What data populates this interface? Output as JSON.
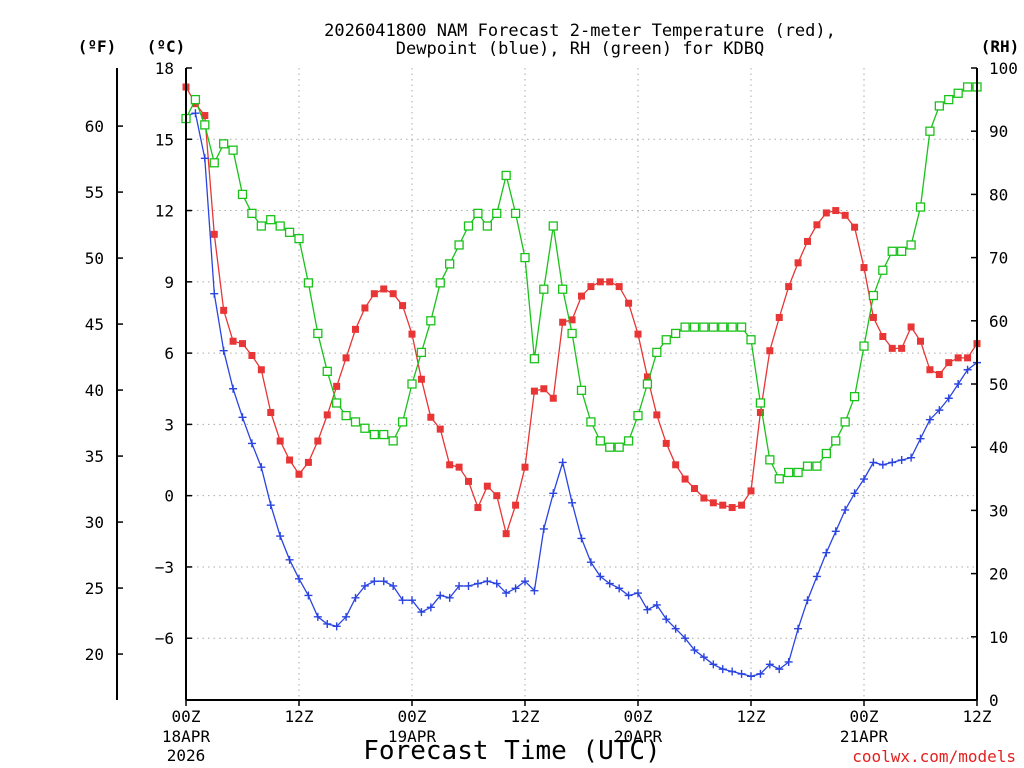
{
  "chart_data": {
    "type": "line",
    "title_lines": [
      "2026041800 NAM Forecast 2-meter Temperature (red),",
      "Dewpoint (blue), RH (green) for KDBQ"
    ],
    "xlabel": "Forecast Time (UTC)",
    "credit": "coolwx.com/models",
    "unit_labels": {
      "fahrenheit": "(ºF)",
      "celsius": "(ºC)",
      "rh": "(RH)"
    },
    "x_unit": "forecast hours",
    "xlim": [
      0,
      84
    ],
    "x_ticks": [
      {
        "hour": 0,
        "label": "00Z",
        "date": "18APR",
        "year": "2026"
      },
      {
        "hour": 12,
        "label": "12Z",
        "date": "",
        "year": ""
      },
      {
        "hour": 24,
        "label": "00Z",
        "date": "19APR",
        "year": ""
      },
      {
        "hour": 36,
        "label": "12Z",
        "date": "",
        "year": ""
      },
      {
        "hour": 48,
        "label": "00Z",
        "date": "20APR",
        "year": ""
      },
      {
        "hour": 60,
        "label": "12Z",
        "date": "",
        "year": ""
      },
      {
        "hour": 72,
        "label": "00Z",
        "date": "21APR",
        "year": ""
      },
      {
        "hour": 84,
        "label": "12Z",
        "date": "",
        "year": ""
      }
    ],
    "ylim_celsius": [
      -8.6,
      18
    ],
    "y_ticks_celsius": [
      -6,
      -3,
      0,
      3,
      6,
      9,
      12,
      15,
      18
    ],
    "y_ticks_fahrenheit": [
      20,
      25,
      30,
      35,
      40,
      45,
      50,
      55,
      60
    ],
    "ylim_rh": [
      0,
      100
    ],
    "y_ticks_rh": [
      0,
      10,
      20,
      30,
      40,
      50,
      60,
      70,
      80,
      90,
      100
    ],
    "grid": true,
    "x": [
      0,
      1,
      2,
      3,
      4,
      5,
      6,
      7,
      8,
      9,
      10,
      11,
      12,
      13,
      14,
      15,
      16,
      17,
      18,
      19,
      20,
      21,
      22,
      23,
      24,
      25,
      26,
      27,
      28,
      29,
      30,
      31,
      32,
      33,
      34,
      35,
      36,
      37,
      38,
      39,
      40,
      41,
      42,
      43,
      44,
      45,
      46,
      47,
      48,
      49,
      50,
      51,
      52,
      53,
      54,
      55,
      56,
      57,
      58,
      59,
      60,
      61,
      62,
      63,
      64,
      65,
      66,
      67,
      68,
      69,
      70,
      71,
      72,
      73,
      74,
      75,
      76,
      77,
      78,
      79,
      80,
      81,
      82,
      83,
      84
    ],
    "series": [
      {
        "name": "Temperature",
        "axis": "celsius",
        "color": "#e83535",
        "marker": "filled-square",
        "values": [
          17.2,
          16.5,
          16.0,
          11.0,
          7.8,
          6.5,
          6.4,
          5.9,
          5.3,
          3.5,
          2.3,
          1.5,
          0.9,
          1.4,
          2.3,
          3.4,
          4.6,
          5.8,
          7.0,
          7.9,
          8.5,
          8.7,
          8.5,
          8.0,
          6.8,
          4.9,
          3.3,
          2.8,
          1.3,
          1.2,
          0.6,
          -0.5,
          0.4,
          0.0,
          -1.6,
          -0.4,
          1.2,
          4.4,
          4.5,
          4.1,
          7.3,
          7.4,
          8.4,
          8.8,
          9.0,
          9.0,
          8.8,
          8.1,
          6.8,
          5.0,
          3.4,
          2.2,
          1.3,
          0.7,
          0.3,
          -0.1,
          -0.3,
          -0.4,
          -0.5,
          -0.4,
          0.2,
          3.5,
          6.1,
          7.5,
          8.8,
          9.8,
          10.7,
          11.4,
          11.9,
          12.0,
          11.8,
          11.3,
          9.6,
          7.5,
          6.7,
          6.2,
          6.2,
          7.1,
          6.5,
          5.3,
          5.1,
          5.6,
          5.8,
          5.8,
          6.4
        ]
      },
      {
        "name": "Dewpoint",
        "axis": "celsius",
        "color": "#2a44e0",
        "marker": "plus",
        "values": [
          16.0,
          16.1,
          14.2,
          8.5,
          6.1,
          4.5,
          3.3,
          2.2,
          1.2,
          -0.4,
          -1.7,
          -2.7,
          -3.5,
          -4.2,
          -5.1,
          -5.4,
          -5.5,
          -5.1,
          -4.3,
          -3.8,
          -3.6,
          -3.6,
          -3.8,
          -4.4,
          -4.4,
          -4.9,
          -4.7,
          -4.2,
          -4.3,
          -3.8,
          -3.8,
          -3.7,
          -3.6,
          -3.7,
          -4.1,
          -3.9,
          -3.6,
          -4.0,
          -1.4,
          0.1,
          1.4,
          -0.3,
          -1.8,
          -2.8,
          -3.4,
          -3.7,
          -3.9,
          -4.2,
          -4.1,
          -4.8,
          -4.6,
          -5.2,
          -5.6,
          -6.0,
          -6.5,
          -6.8,
          -7.1,
          -7.3,
          -7.4,
          -7.5,
          -7.6,
          -7.5,
          -7.1,
          -7.3,
          -7.0,
          -5.6,
          -4.4,
          -3.4,
          -2.4,
          -1.5,
          -0.6,
          0.1,
          0.7,
          1.4,
          1.3,
          1.4,
          1.5,
          1.6,
          2.4,
          3.2,
          3.6,
          4.1,
          4.7,
          5.3,
          5.6
        ]
      },
      {
        "name": "RH",
        "axis": "rh",
        "color": "#19c219",
        "marker": "open-square",
        "values": [
          92,
          95,
          91,
          85,
          88,
          87,
          80,
          77,
          75,
          76,
          75,
          74,
          73,
          66,
          58,
          52,
          47,
          45,
          44,
          43,
          42,
          42,
          41,
          44,
          50,
          55,
          60,
          66,
          69,
          72,
          75,
          77,
          75,
          77,
          83,
          77,
          70,
          54,
          65,
          75,
          65,
          58,
          49,
          44,
          41,
          40,
          40,
          41,
          45,
          50,
          55,
          57,
          58,
          59,
          59,
          59,
          59,
          59,
          59,
          59,
          57,
          47,
          38,
          35,
          36,
          36,
          37,
          37,
          39,
          41,
          44,
          48,
          56,
          64,
          68,
          71,
          71,
          72,
          78,
          90,
          94,
          95,
          96,
          97,
          97
        ]
      }
    ]
  }
}
